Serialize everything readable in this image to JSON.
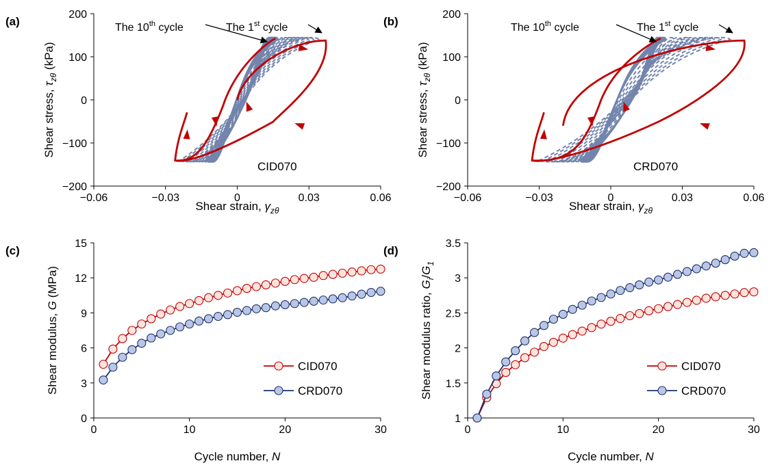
{
  "colors": {
    "first_cycle": "#c00000",
    "later_cycles": "#7385ad",
    "cid_marker_fill": "#fde3dd",
    "cid_line": "#c00000",
    "crd_marker_fill": "#b9c7e6",
    "crd_line": "#1f2f6b"
  },
  "chart_data": [
    {
      "id": "a",
      "type": "line",
      "panel_label": "(a)",
      "specimen_label": "CID070",
      "xlabel": "Shear strain, γzθ",
      "ylabel": "Shear stress, τzθ (kPa)",
      "xlim": [
        -0.06,
        0.06
      ],
      "ylim": [
        -200,
        200
      ],
      "xticks": [
        -0.06,
        -0.03,
        0,
        0.03,
        0.06
      ],
      "xtick_labels": [
        "−0.06",
        "−0.03",
        "0",
        "0.03",
        "0.06"
      ],
      "yticks": [
        -200,
        -100,
        0,
        100,
        200
      ],
      "ytick_labels": [
        "−200",
        "−100",
        "0",
        "100",
        "200"
      ],
      "annotation_10th": {
        "text": "The 10",
        "sup": "th",
        "tail": " cycle",
        "target": [
          0.0125,
          135
        ]
      },
      "annotation_1st": {
        "text": "The 1",
        "sup": "st",
        "tail": " cycle",
        "target": [
          0.036,
          140
        ]
      },
      "amplitude": 145,
      "first_cycle": {
        "start": [
          0,
          0
        ],
        "peak_pos_strain": 0.037,
        "peak_neg_strain": -0.026,
        "res_pos": 0.015,
        "res_neg": -0.012
      },
      "later_cycles": {
        "count": 9,
        "pos_from": 0.034,
        "pos_to": 0.017,
        "neg_from": -0.024,
        "neg_to": -0.013,
        "res_pos_from": 0.013,
        "res_pos_to": 0.0105,
        "res_neg_from": -0.012,
        "res_neg_to": -0.0085
      }
    },
    {
      "id": "b",
      "type": "line",
      "panel_label": "(b)",
      "specimen_label": "CRD070",
      "xlabel": "Shear strain, γzθ",
      "ylabel": "Shear stress, τzθ (kPa)",
      "xlim": [
        -0.06,
        0.06
      ],
      "ylim": [
        -200,
        200
      ],
      "xticks": [
        -0.06,
        -0.03,
        0,
        0.03,
        0.06
      ],
      "xtick_labels": [
        "−0.06",
        "−0.03",
        "0",
        "0.03",
        "0.06"
      ],
      "yticks": [
        -200,
        -100,
        0,
        100,
        200
      ],
      "ytick_labels": [
        "−200",
        "−100",
        "0",
        "100",
        "200"
      ],
      "annotation_10th": {
        "text": "The 10",
        "sup": "th",
        "tail": " cycle",
        "target": [
          0.019,
          135
        ]
      },
      "annotation_1st": {
        "text": "The 1",
        "sup": "st",
        "tail": " cycle",
        "target": [
          0.055,
          140
        ]
      },
      "amplitude": 145,
      "first_cycle": {
        "start": [
          -0.02,
          -60
        ],
        "peak_pos_strain": 0.056,
        "peak_neg_strain": -0.033,
        "res_pos": 0.02,
        "res_neg": -0.011
      },
      "later_cycles": {
        "count": 9,
        "pos_from": 0.05,
        "pos_to": 0.023,
        "neg_from": -0.03,
        "neg_to": -0.013,
        "res_pos_from": 0.02,
        "res_pos_to": 0.018,
        "res_neg_from": -0.011,
        "res_neg_to": -0.007
      }
    },
    {
      "id": "c",
      "type": "line",
      "panel_label": "(c)",
      "xlabel": "Cycle number, N",
      "ylabel": "Shear modulus, G (MPa)",
      "xlim": [
        0,
        30
      ],
      "ylim": [
        0,
        15
      ],
      "xticks": [
        0,
        10,
        20,
        30
      ],
      "xtick_labels": [
        "0",
        "10",
        "20",
        "30"
      ],
      "yticks": [
        0,
        3,
        6,
        9,
        12,
        15
      ],
      "ytick_labels": [
        "0",
        "3",
        "6",
        "9",
        "12",
        "15"
      ],
      "legend_position": "bottom-right",
      "x": [
        1,
        2,
        3,
        4,
        5,
        6,
        7,
        8,
        9,
        10,
        11,
        12,
        13,
        14,
        15,
        16,
        17,
        18,
        19,
        20,
        21,
        22,
        23,
        24,
        25,
        26,
        27,
        28,
        29,
        30
      ],
      "series": [
        {
          "name": "CID070",
          "values": [
            4.6,
            5.9,
            6.8,
            7.5,
            8.05,
            8.5,
            8.9,
            9.25,
            9.55,
            9.8,
            10.05,
            10.3,
            10.5,
            10.7,
            10.9,
            11.1,
            11.25,
            11.4,
            11.55,
            11.7,
            11.85,
            11.95,
            12.05,
            12.2,
            12.3,
            12.4,
            12.5,
            12.6,
            12.7,
            12.75
          ]
        },
        {
          "name": "CRD070",
          "values": [
            3.25,
            4.35,
            5.2,
            5.85,
            6.4,
            6.85,
            7.2,
            7.5,
            7.8,
            8.05,
            8.3,
            8.5,
            8.7,
            8.85,
            9.05,
            9.2,
            9.35,
            9.45,
            9.6,
            9.7,
            9.8,
            9.9,
            10.0,
            10.1,
            10.2,
            10.3,
            10.45,
            10.6,
            10.75,
            10.85
          ]
        }
      ]
    },
    {
      "id": "d",
      "type": "line",
      "panel_label": "(d)",
      "xlabel": "Cycle number, N",
      "ylabel": "Shear modulus ratio, Gi/G1",
      "xlim": [
        0,
        30
      ],
      "ylim": [
        1,
        3.5
      ],
      "xticks": [
        0,
        10,
        20,
        30
      ],
      "xtick_labels": [
        "0",
        "10",
        "20",
        "30"
      ],
      "yticks": [
        1,
        1.5,
        2,
        2.5,
        3,
        3.5
      ],
      "ytick_labels": [
        "1",
        "1.5",
        "2",
        "2.5",
        "3",
        "3.5"
      ],
      "legend_position": "bottom-right",
      "x": [
        1,
        2,
        3,
        4,
        5,
        6,
        7,
        8,
        9,
        10,
        11,
        12,
        13,
        14,
        15,
        16,
        17,
        18,
        19,
        20,
        21,
        22,
        23,
        24,
        25,
        26,
        27,
        28,
        29,
        30
      ],
      "series": [
        {
          "name": "CID070",
          "values": [
            1.0,
            1.29,
            1.49,
            1.65,
            1.76,
            1.86,
            1.94,
            2.02,
            2.08,
            2.14,
            2.19,
            2.24,
            2.29,
            2.34,
            2.38,
            2.42,
            2.46,
            2.49,
            2.53,
            2.56,
            2.59,
            2.62,
            2.65,
            2.68,
            2.71,
            2.73,
            2.75,
            2.77,
            2.79,
            2.8
          ]
        },
        {
          "name": "CRD070",
          "values": [
            1.0,
            1.34,
            1.6,
            1.8,
            1.96,
            2.1,
            2.22,
            2.32,
            2.41,
            2.48,
            2.55,
            2.61,
            2.67,
            2.72,
            2.77,
            2.82,
            2.86,
            2.9,
            2.94,
            2.97,
            3.01,
            3.05,
            3.09,
            3.13,
            3.17,
            3.21,
            3.26,
            3.31,
            3.35,
            3.36
          ]
        }
      ]
    }
  ]
}
